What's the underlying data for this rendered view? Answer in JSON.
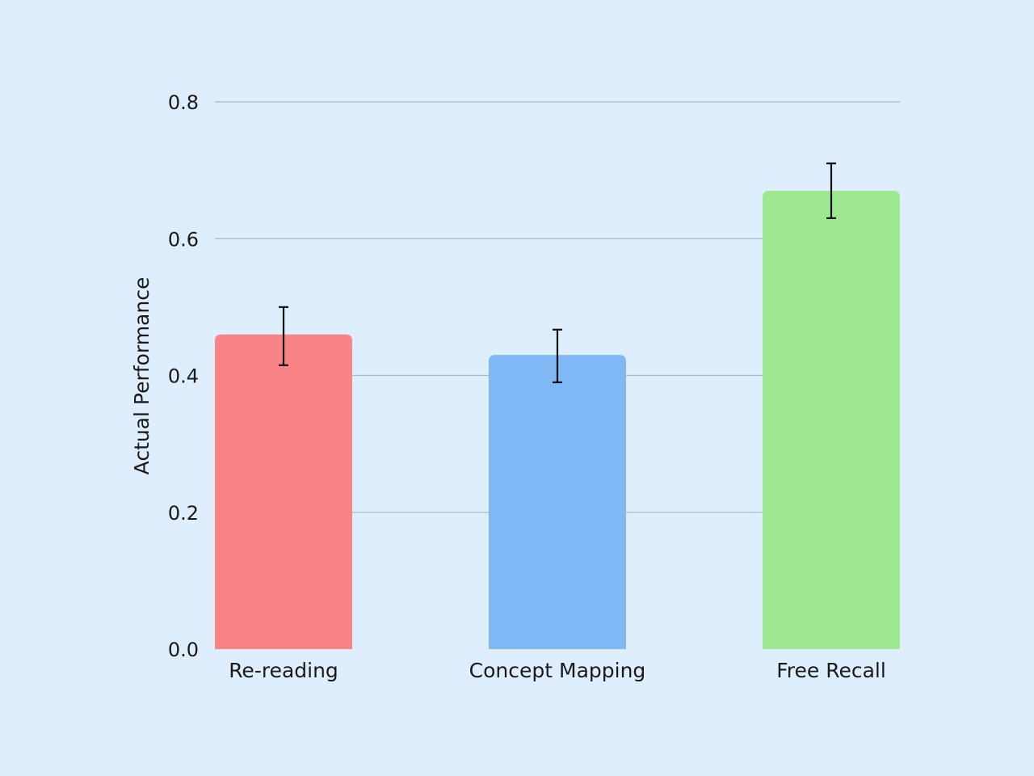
{
  "chart_data": {
    "type": "bar",
    "title": "",
    "xlabel": "",
    "ylabel": "Actual Performance",
    "ylim": [
      0,
      0.8
    ],
    "yticks": [
      "0.0",
      "0.2",
      "0.4",
      "0.6",
      "0.8"
    ],
    "grid": true,
    "categories": [
      "Re-reading",
      "Concept Mapping",
      "Free Recall"
    ],
    "values": [
      0.46,
      0.43,
      0.67
    ],
    "error_bars": [
      {
        "low": 0.415,
        "high": 0.5
      },
      {
        "low": 0.39,
        "high": 0.467
      },
      {
        "low": 0.63,
        "high": 0.71
      }
    ],
    "colors": [
      "#F88487",
      "#80B8F6",
      "#9DE891"
    ],
    "background": "#DFEEFD",
    "gridline_color": "#A9B9CB",
    "errorbar_color": "#111111"
  }
}
